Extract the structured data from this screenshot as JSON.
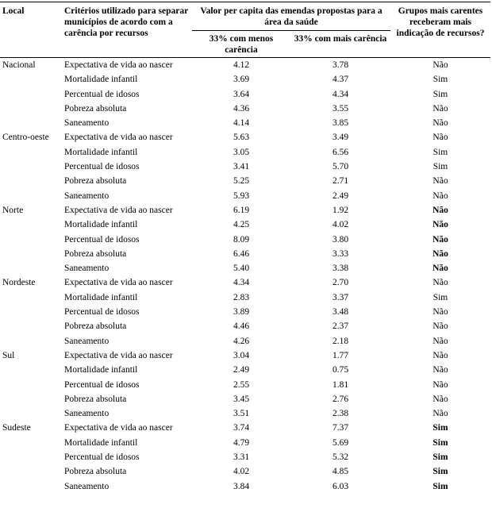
{
  "table": {
    "header": {
      "local": "Local",
      "criteria": "Critérios utilizado para separar municípios de acordo com a carência por recursos",
      "value_group": "Valor per capita das emendas propostas para a área da saúde",
      "value_sub_less": "33% com menos carência",
      "value_sub_more": "33% com mais carência",
      "indication": "Grupos mais carentes receberam mais indicação de recursos?"
    },
    "groups": [
      {
        "local": "Nacional",
        "rows": [
          {
            "criterion": "Expectativa de vida ao nascer",
            "less_need": "4.12",
            "more_need": "3.78",
            "answer": "Não",
            "answer_bold": false
          },
          {
            "criterion": "Mortalidade infantil",
            "less_need": "3.69",
            "more_need": "4.37",
            "answer": "Sim",
            "answer_bold": false
          },
          {
            "criterion": "Percentual de idosos",
            "less_need": "3.64",
            "more_need": "4.34",
            "answer": "Sim",
            "answer_bold": false
          },
          {
            "criterion": "Pobreza absoluta",
            "less_need": "4.36",
            "more_need": "3.55",
            "answer": "Não",
            "answer_bold": false
          },
          {
            "criterion": "Saneamento",
            "less_need": "4.14",
            "more_need": "3.85",
            "answer": "Não",
            "answer_bold": false
          }
        ]
      },
      {
        "local": "Centro-oeste",
        "rows": [
          {
            "criterion": "Expectativa de vida ao nascer",
            "less_need": "5.63",
            "more_need": "3.49",
            "answer": "Não",
            "answer_bold": false
          },
          {
            "criterion": "Mortalidade infantil",
            "less_need": "3.05",
            "more_need": "6.56",
            "answer": "Sim",
            "answer_bold": false
          },
          {
            "criterion": "Percentual de idosos",
            "less_need": "3.41",
            "more_need": "5.70",
            "answer": "Sim",
            "answer_bold": false
          },
          {
            "criterion": "Pobreza absoluta",
            "less_need": "5.25",
            "more_need": "2.71",
            "answer": "Não",
            "answer_bold": false
          },
          {
            "criterion": "Saneamento",
            "less_need": "5.93",
            "more_need": "2.49",
            "answer": "Não",
            "answer_bold": false
          }
        ]
      },
      {
        "local": "Norte",
        "rows": [
          {
            "criterion": "Expectativa de vida ao nascer",
            "less_need": "6.19",
            "more_need": "1.92",
            "answer": "Não",
            "answer_bold": true
          },
          {
            "criterion": "Mortalidade infantil",
            "less_need": "4.25",
            "more_need": "4.02",
            "answer": "Não",
            "answer_bold": true
          },
          {
            "criterion": "Percentual de idosos",
            "less_need": "8.09",
            "more_need": "3.80",
            "answer": "Não",
            "answer_bold": true
          },
          {
            "criterion": "Pobreza absoluta",
            "less_need": "6.46",
            "more_need": "3.33",
            "answer": "Não",
            "answer_bold": true
          },
          {
            "criterion": "Saneamento",
            "less_need": "5.40",
            "more_need": "3.38",
            "answer": "Não",
            "answer_bold": true
          }
        ]
      },
      {
        "local": "Nordeste",
        "rows": [
          {
            "criterion": "Expectativa de vida ao nascer",
            "less_need": "4.34",
            "more_need": "2.70",
            "answer": "Não",
            "answer_bold": false
          },
          {
            "criterion": "Mortalidade infantil",
            "less_need": "2.83",
            "more_need": "3.37",
            "answer": "Sim",
            "answer_bold": false
          },
          {
            "criterion": "Percentual de idosos",
            "less_need": "3.89",
            "more_need": "3.48",
            "answer": "Não",
            "answer_bold": false
          },
          {
            "criterion": "Pobreza absoluta",
            "less_need": "4.46",
            "more_need": "2.37",
            "answer": "Não",
            "answer_bold": false
          },
          {
            "criterion": "Saneamento",
            "less_need": "4.26",
            "more_need": "2.18",
            "answer": "Não",
            "answer_bold": false
          }
        ]
      },
      {
        "local": "Sul",
        "rows": [
          {
            "criterion": "Expectativa de vida ao nascer",
            "less_need": "3.04",
            "more_need": "1.77",
            "answer": "Não",
            "answer_bold": false
          },
          {
            "criterion": "Mortalidade infantil",
            "less_need": "2.49",
            "more_need": "0.75",
            "answer": "Não",
            "answer_bold": false
          },
          {
            "criterion": "Percentual de idosos",
            "less_need": "2.55",
            "more_need": "1.81",
            "answer": "Não",
            "answer_bold": false
          },
          {
            "criterion": "Pobreza absoluta",
            "less_need": "3.45",
            "more_need": "2.76",
            "answer": "Não",
            "answer_bold": false
          },
          {
            "criterion": "Saneamento",
            "less_need": "3.51",
            "more_need": "2.38",
            "answer": "Não",
            "answer_bold": false
          }
        ]
      },
      {
        "local": "Sudeste",
        "rows": [
          {
            "criterion": "Expectativa de vida ao nascer",
            "less_need": "3.74",
            "more_need": "7.37",
            "answer": "Sim",
            "answer_bold": true
          },
          {
            "criterion": "Mortalidade infantil",
            "less_need": "4.79",
            "more_need": "5.69",
            "answer": "Sim",
            "answer_bold": true
          },
          {
            "criterion": "Percentual de idosos",
            "less_need": "3.31",
            "more_need": "5.32",
            "answer": "Sim",
            "answer_bold": true
          },
          {
            "criterion": "Pobreza absoluta",
            "less_need": "4.02",
            "more_need": "4.85",
            "answer": "Sim",
            "answer_bold": true
          },
          {
            "criterion": "Saneamento",
            "less_need": "3.84",
            "more_need": "6.03",
            "answer": "Sim",
            "answer_bold": true
          }
        ]
      }
    ]
  }
}
